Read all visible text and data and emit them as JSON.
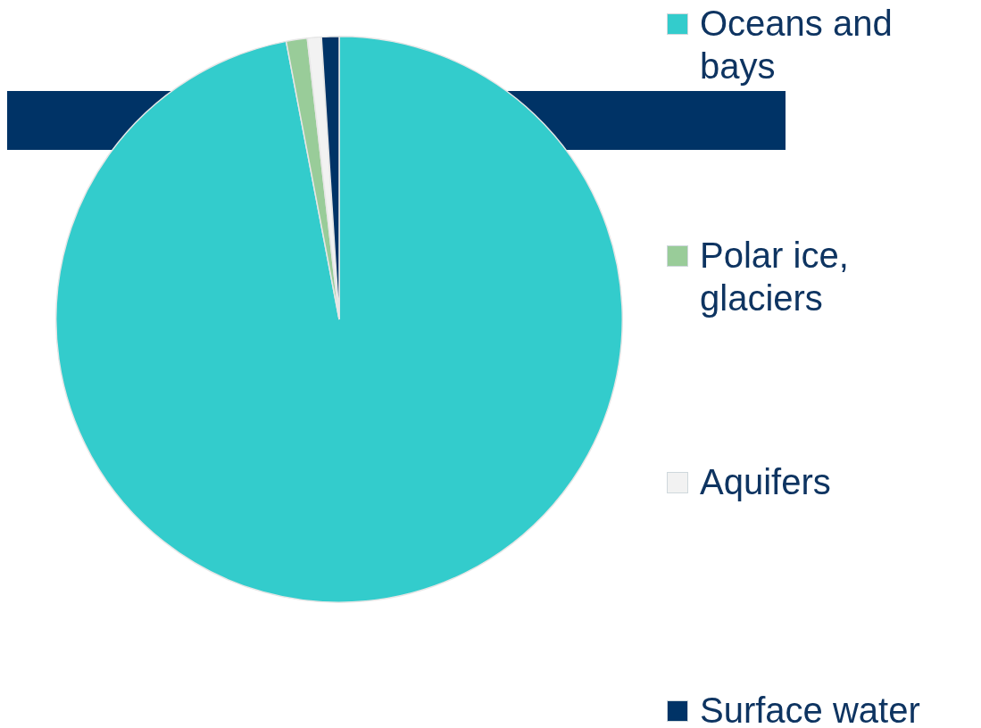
{
  "chart_data": {
    "type": "pie",
    "categories": [
      "Oceans and bays",
      "Polar ice, glaciers",
      "Aquifers",
      "Surface water"
    ],
    "values": [
      97,
      1.2,
      0.8,
      1
    ],
    "colors": [
      "#33cccc",
      "#99cc99",
      "#f2f2f2",
      "#003366"
    ],
    "legend": "right"
  }
}
